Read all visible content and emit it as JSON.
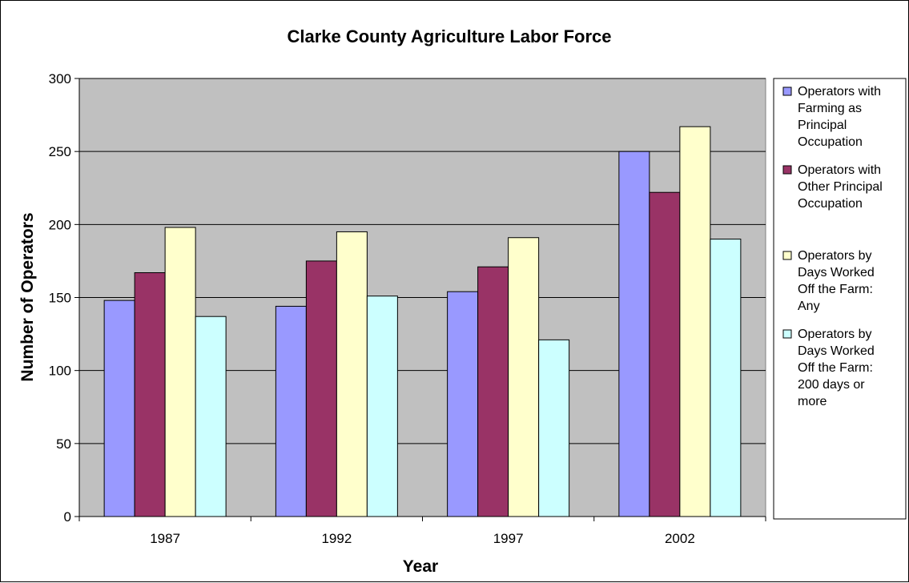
{
  "chart_data": {
    "type": "bar",
    "title": "Clarke County Agriculture Labor Force",
    "xlabel": "Year",
    "ylabel": "Number of Operators",
    "categories": [
      "1987",
      "1992",
      "1997",
      "2002"
    ],
    "ylim": [
      0,
      300
    ],
    "yticks": [
      "0",
      "50",
      "100",
      "150",
      "200",
      "250",
      "300"
    ],
    "grid": true,
    "legend_position": "right",
    "plot_background": "#c0c0c0",
    "series": [
      {
        "name": "Operators with Farming as Principal Occupation",
        "legend_lines": [
          "Operators with",
          "Farming as",
          "Principal",
          "Occupation"
        ],
        "color": "#9999ff",
        "values": [
          148,
          144,
          154,
          250
        ]
      },
      {
        "name": "Operators with Other Principal Occupation",
        "legend_lines": [
          "Operators with",
          "Other Principal",
          "Occupation"
        ],
        "color": "#993366",
        "values": [
          167,
          175,
          171,
          222
        ]
      },
      {
        "name": "Operators by Days Worked Off the Farm: Any",
        "legend_lines": [
          "Operators by",
          "Days Worked",
          "Off the Farm:",
          "Any"
        ],
        "color": "#ffffcc",
        "values": [
          198,
          195,
          191,
          267
        ]
      },
      {
        "name": "Operators by Days Worked Off the Farm: 200 days or more",
        "legend_lines": [
          "Operators by",
          "Days Worked",
          "Off the Farm:",
          "200 days or",
          "more"
        ],
        "color": "#ccffff",
        "values": [
          137,
          151,
          121,
          190
        ]
      }
    ]
  }
}
